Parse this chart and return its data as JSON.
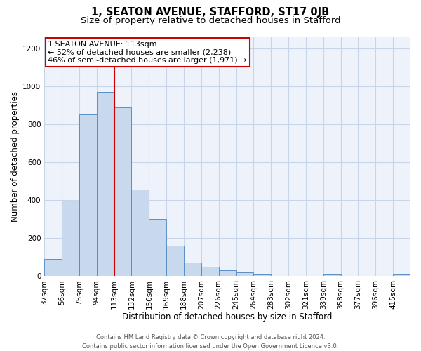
{
  "title": "1, SEATON AVENUE, STAFFORD, ST17 0JB",
  "subtitle": "Size of property relative to detached houses in Stafford",
  "xlabel": "Distribution of detached houses by size in Stafford",
  "ylabel": "Number of detached properties",
  "bin_labels": [
    "37sqm",
    "56sqm",
    "75sqm",
    "94sqm",
    "113sqm",
    "132sqm",
    "150sqm",
    "169sqm",
    "188sqm",
    "207sqm",
    "226sqm",
    "245sqm",
    "264sqm",
    "283sqm",
    "302sqm",
    "321sqm",
    "339sqm",
    "358sqm",
    "377sqm",
    "396sqm",
    "415sqm"
  ],
  "bin_values": [
    90,
    395,
    850,
    970,
    890,
    455,
    300,
    160,
    70,
    50,
    30,
    20,
    10,
    0,
    0,
    0,
    10,
    0,
    0,
    0,
    10
  ],
  "bar_color": "#c9d9ed",
  "bar_edge_color": "#5b8fc4",
  "property_bin_index": 4,
  "vline_color": "#cc0000",
  "annotation_box_color": "#cc0000",
  "annotation_line1": "1 SEATON AVENUE: 113sqm",
  "annotation_line2": "← 52% of detached houses are smaller (2,238)",
  "annotation_line3": "46% of semi-detached houses are larger (1,971) →",
  "annotation_fontsize": 8.0,
  "ylim": [
    0,
    1260
  ],
  "yticks": [
    0,
    200,
    400,
    600,
    800,
    1000,
    1200
  ],
  "grid_color": "#c8d4e8",
  "background_color": "#eef2fa",
  "footer_line1": "Contains HM Land Registry data © Crown copyright and database right 2024.",
  "footer_line2": "Contains public sector information licensed under the Open Government Licence v3.0.",
  "title_fontsize": 10.5,
  "subtitle_fontsize": 9.5,
  "xlabel_fontsize": 8.5,
  "ylabel_fontsize": 8.5,
  "tick_fontsize": 7.5,
  "footer_fontsize": 6.0
}
